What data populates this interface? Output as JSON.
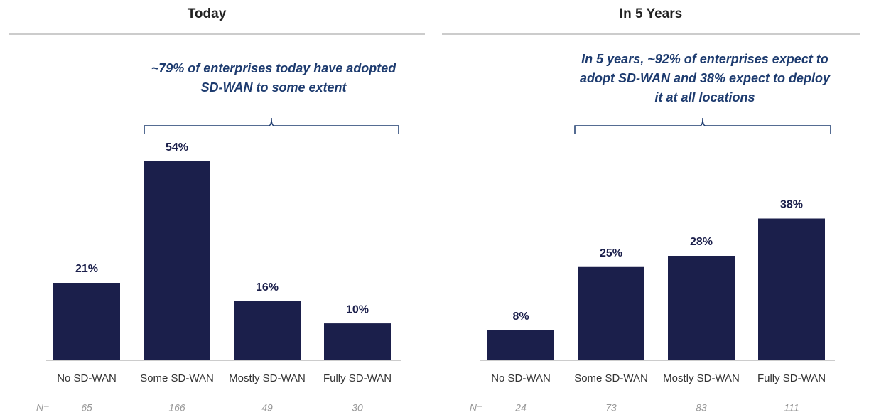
{
  "chart_data": [
    {
      "type": "bar",
      "title": "Today",
      "annotation": [
        "~79% of enterprises today have adopted",
        "SD-WAN to some extent"
      ],
      "categories": [
        "No SD-WAN",
        "Some SD-WAN",
        "Mostly SD-WAN",
        "Fully SD-WAN"
      ],
      "values": [
        21,
        54,
        16,
        10
      ],
      "value_labels": [
        "21%",
        "54%",
        "16%",
        "10%"
      ],
      "n_label": "N=",
      "n_values": [
        65,
        166,
        49,
        30
      ],
      "color": "#1b1f4b"
    },
    {
      "type": "bar",
      "title": "In 5 Years",
      "annotation": [
        "In 5 years, ~92% of enterprises expect to",
        "adopt SD-WAN and 38% expect to deploy",
        "it at all locations"
      ],
      "categories": [
        "No SD-WAN",
        "Some SD-WAN",
        "Mostly SD-WAN",
        "Fully SD-WAN"
      ],
      "values": [
        8,
        25,
        28,
        38
      ],
      "value_labels": [
        "8%",
        "25%",
        "28%",
        "38%"
      ],
      "n_label": "N=",
      "n_values": [
        24,
        73,
        83,
        111
      ],
      "color": "#1b1f4b"
    }
  ]
}
